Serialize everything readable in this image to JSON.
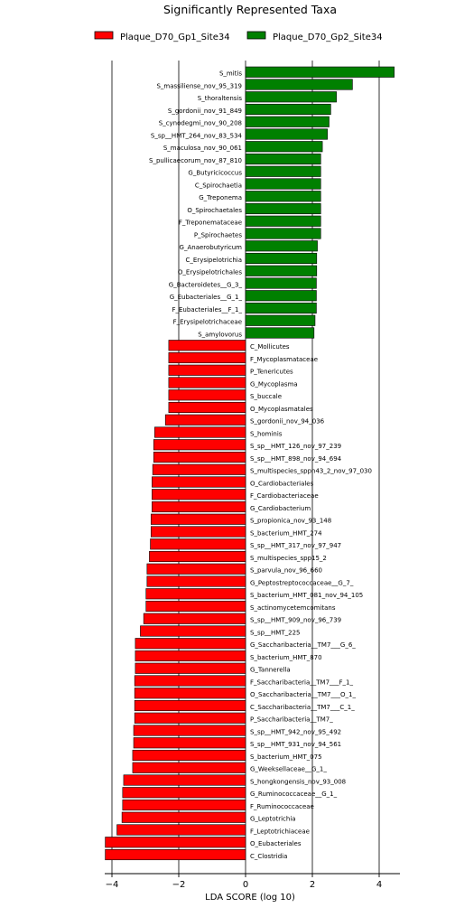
{
  "chart_data": {
    "type": "bar",
    "orientation": "horizontal",
    "title": "Significantly Represented Taxa",
    "xlabel": "LDA SCORE (log 10)",
    "ylabel": "",
    "xlim": [
      -4.2,
      4.6
    ],
    "xticks": [
      -4,
      -2,
      0,
      2,
      4
    ],
    "xtick_labels": [
      "−4",
      "−2",
      "0",
      "2",
      "4"
    ],
    "grid": "vertical lines at x ticks",
    "legend_position": "top-center",
    "label_side": "positive bars labeled left of zero, negative bars labeled right of zero",
    "series": [
      {
        "name": "Plaque_D70_Gp1_Site34",
        "color": "#ff0000",
        "sign": "negative"
      },
      {
        "name": "Plaque_D70_Gp2_Site34",
        "color": "#008000",
        "sign": "positive"
      }
    ],
    "bars": [
      {
        "label": "S_mitis",
        "value": 4.45,
        "group": 1
      },
      {
        "label": "S_massiliense_nov_95_319",
        "value": 3.2,
        "group": 1
      },
      {
        "label": "S_thoraltensis",
        "value": 2.72,
        "group": 1
      },
      {
        "label": "S_gordonii_nov_91_849",
        "value": 2.55,
        "group": 1
      },
      {
        "label": "S_cynodegmi_nov_90_208",
        "value": 2.5,
        "group": 1
      },
      {
        "label": "S_sp__HMT_264_nov_83_534",
        "value": 2.45,
        "group": 1
      },
      {
        "label": "S_maculosa_nov_90_061",
        "value": 2.3,
        "group": 1
      },
      {
        "label": "S_pullicaecorum_nov_87_810",
        "value": 2.25,
        "group": 1
      },
      {
        "label": "G_Butyricicoccus",
        "value": 2.25,
        "group": 1
      },
      {
        "label": "C_Spirochaetia",
        "value": 2.25,
        "group": 1
      },
      {
        "label": "G_Treponema",
        "value": 2.25,
        "group": 1
      },
      {
        "label": "O_Spirochaetales",
        "value": 2.25,
        "group": 1
      },
      {
        "label": "F_Treponemataceae",
        "value": 2.25,
        "group": 1
      },
      {
        "label": "P_Spirochaetes",
        "value": 2.25,
        "group": 1
      },
      {
        "label": "G_Anaerobutyricum",
        "value": 2.15,
        "group": 1
      },
      {
        "label": "C_Erysipelotrichia",
        "value": 2.13,
        "group": 1
      },
      {
        "label": "O_Erysipelotrichales",
        "value": 2.13,
        "group": 1
      },
      {
        "label": "G_Bacteroidetes__G_3_",
        "value": 2.12,
        "group": 1
      },
      {
        "label": "G_Eubacteriales__G_1_",
        "value": 2.12,
        "group": 1
      },
      {
        "label": "F_Eubacteriales__F_1_",
        "value": 2.12,
        "group": 1
      },
      {
        "label": "F_Erysipelotrichaceae",
        "value": 2.08,
        "group": 1
      },
      {
        "label": "S_amylovorus",
        "value": 2.05,
        "group": 1
      },
      {
        "label": "C_Mollicutes",
        "value": -2.3,
        "group": 0
      },
      {
        "label": "F_Mycoplasmataceae",
        "value": -2.3,
        "group": 0
      },
      {
        "label": "P_Tenericutes",
        "value": -2.3,
        "group": 0
      },
      {
        "label": "G_Mycoplasma",
        "value": -2.3,
        "group": 0
      },
      {
        "label": "S_buccale",
        "value": -2.3,
        "group": 0
      },
      {
        "label": "O_Mycoplasmatales",
        "value": -2.3,
        "group": 0
      },
      {
        "label": "S_gordonii_nov_94_036",
        "value": -2.4,
        "group": 0
      },
      {
        "label": "S_hominis",
        "value": -2.72,
        "group": 0
      },
      {
        "label": "S_sp__HMT_126_nov_97_239",
        "value": -2.75,
        "group": 0
      },
      {
        "label": "S_sp__HMT_898_nov_94_694",
        "value": -2.75,
        "group": 0
      },
      {
        "label": "S_multispecies_sppn43_2_nov_97_030",
        "value": -2.78,
        "group": 0
      },
      {
        "label": "O_Cardiobacteriales",
        "value": -2.8,
        "group": 0
      },
      {
        "label": "F_Cardiobacteriaceae",
        "value": -2.8,
        "group": 0
      },
      {
        "label": "G_Cardiobacterium",
        "value": -2.8,
        "group": 0
      },
      {
        "label": "S_propionica_nov_93_148",
        "value": -2.83,
        "group": 0
      },
      {
        "label": "S_bacterium_HMT_274",
        "value": -2.83,
        "group": 0
      },
      {
        "label": "S_sp__HMT_317_nov_97_947",
        "value": -2.85,
        "group": 0
      },
      {
        "label": "S_multispecies_spp15_2",
        "value": -2.88,
        "group": 0
      },
      {
        "label": "S_parvula_nov_96_660",
        "value": -2.95,
        "group": 0
      },
      {
        "label": "G_Peptostreptococcaceae__G_7_",
        "value": -2.95,
        "group": 0
      },
      {
        "label": "S_bacterium_HMT_081_nov_94_105",
        "value": -2.98,
        "group": 0
      },
      {
        "label": "S_actinomycetemcomitans",
        "value": -2.98,
        "group": 0
      },
      {
        "label": "S_sp__HMT_909_nov_96_739",
        "value": -3.05,
        "group": 0
      },
      {
        "label": "S_sp__HMT_225",
        "value": -3.15,
        "group": 0
      },
      {
        "label": "G_Saccharibacteria__TM7___G_6_",
        "value": -3.3,
        "group": 0
      },
      {
        "label": "S_bacterium_HMT_870",
        "value": -3.3,
        "group": 0
      },
      {
        "label": "G_Tannerella",
        "value": -3.3,
        "group": 0
      },
      {
        "label": "F_Saccharibacteria__TM7___F_1_",
        "value": -3.32,
        "group": 0
      },
      {
        "label": "O_Saccharibacteria__TM7___O_1_",
        "value": -3.32,
        "group": 0
      },
      {
        "label": "C_Saccharibacteria__TM7___C_1_",
        "value": -3.32,
        "group": 0
      },
      {
        "label": "P_Saccharibacteria__TM7_",
        "value": -3.32,
        "group": 0
      },
      {
        "label": "S_sp__HMT_942_nov_95_492",
        "value": -3.35,
        "group": 0
      },
      {
        "label": "S_sp__HMT_931_nov_94_561",
        "value": -3.35,
        "group": 0
      },
      {
        "label": "S_bacterium_HMT_075",
        "value": -3.38,
        "group": 0
      },
      {
        "label": "G_Weeksellaceae__G_1_",
        "value": -3.38,
        "group": 0
      },
      {
        "label": "S_hongkongensis_nov_93_008",
        "value": -3.65,
        "group": 0
      },
      {
        "label": "G_Ruminococcaceae__G_1_",
        "value": -3.68,
        "group": 0
      },
      {
        "label": "F_Ruminococcaceae",
        "value": -3.68,
        "group": 0
      },
      {
        "label": "G_Leptotrichia",
        "value": -3.7,
        "group": 0
      },
      {
        "label": "F_Leptotrichiaceae",
        "value": -3.85,
        "group": 0
      },
      {
        "label": "O_Eubacteriales",
        "value": -4.2,
        "group": 0
      },
      {
        "label": "C_Clostridia",
        "value": -4.2,
        "group": 0
      }
    ]
  }
}
